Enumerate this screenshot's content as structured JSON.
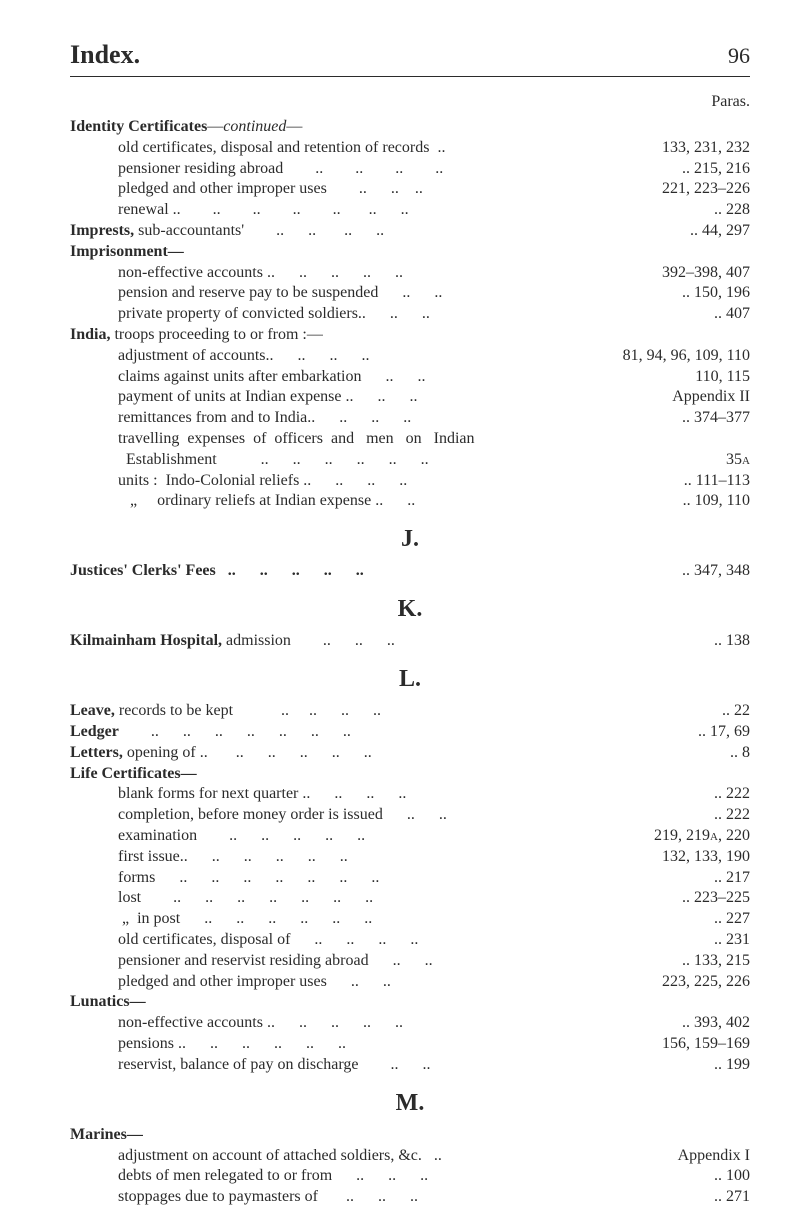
{
  "header": {
    "title": "Index.",
    "page": "96"
  },
  "paras_label": "Paras.",
  "entries": [
    {
      "html": "<span class='bold'>Identity Certificates</span>—<i>continued</i>—",
      "paras": "",
      "indent": 0
    },
    {
      "html": "old certificates, disposal and retention of records  ..",
      "paras": "133, 231, 232",
      "indent": 1
    },
    {
      "html": "pensioner residing abroad        ..        ..        ..        ..",
      "paras": ".. 215, 216",
      "indent": 1
    },
    {
      "html": "pledged and other improper uses        ..      ..    ..",
      "paras": "221, 223–226",
      "indent": 1
    },
    {
      "html": "renewal ..        ..        ..        ..        ..       ..      ..",
      "paras": "..        228",
      "indent": 1
    },
    {
      "html": "<span class='bold'>Imprests,</span> sub-accountants'        ..      ..       ..      ..",
      "paras": ".. 44, 297",
      "indent": 0
    },
    {
      "html": "<span class='bold'>Imprisonment—</span>",
      "paras": "",
      "indent": 0
    },
    {
      "html": "non-effective accounts ..      ..      ..      ..      ..",
      "paras": "392–398, 407",
      "indent": 1
    },
    {
      "html": "pension and reserve pay to be suspended      ..      ..",
      "paras": ".. 150, 196",
      "indent": 1
    },
    {
      "html": "private property of convicted soldiers..      ..      ..",
      "paras": "..        407",
      "indent": 1
    },
    {
      "html": "<span class='bold'>India,</span> troops proceeding to or from :—",
      "paras": "",
      "indent": 0
    },
    {
      "html": "adjustment of accounts..      ..      ..      ..",
      "paras": "81, 94, 96, 109, 110",
      "indent": 1
    },
    {
      "html": "claims against units after embarkation      ..      ..",
      "paras": "110, 115",
      "indent": 1
    },
    {
      "html": "payment of units at Indian expense ..      ..      ..",
      "paras": "Appendix II",
      "indent": 1
    },
    {
      "html": "remittances from and to India..      ..      ..      ..",
      "paras": ".. 374–377",
      "indent": 1
    },
    {
      "html": "travelling  expenses  of  officers  and   men   on   Indian",
      "paras": "",
      "indent": 1
    },
    {
      "html": "  Establishment           ..      ..      ..      ..      ..      ..",
      "paras": "35<span class='sc'>a</span>",
      "indent": 1
    },
    {
      "html": "units :  Indo-Colonial reliefs ..      ..      ..      ..",
      "paras": ".. 111–113",
      "indent": 1
    },
    {
      "html": "   „     ordinary reliefs at Indian expense ..      ..",
      "paras": ".. 109, 110",
      "indent": 1
    },
    {
      "section": "J."
    },
    {
      "html": "<span class='bold'>Justices' Clerks' Fees   ..      ..      ..      ..      ..</span>",
      "paras": ".. 347, 348",
      "indent": 0
    },
    {
      "section": "K."
    },
    {
      "html": "<span class='bold'>Kilmainham Hospital,</span> admission        ..      ..      ..",
      "paras": "..        138",
      "indent": 0
    },
    {
      "section": "L."
    },
    {
      "html": "<span class='bold'>Leave,</span> records to be kept            ..     ..      ..      ..",
      "paras": "..         22",
      "indent": 0
    },
    {
      "html": "<span class='bold'>Ledger</span>        ..      ..      ..      ..      ..      ..      ..",
      "paras": "..    17, 69",
      "indent": 0
    },
    {
      "html": "<span class='bold'>Letters,</span> opening of ..       ..      ..      ..      ..      ..",
      "paras": "..           8",
      "indent": 0
    },
    {
      "html": "<span class='bold'>Life Certificates—</span>",
      "paras": "",
      "indent": 0
    },
    {
      "html": "blank forms for next quarter ..      ..      ..      ..",
      "paras": "..        222",
      "indent": 1
    },
    {
      "html": "completion, before money order is issued      ..      ..",
      "paras": "..        222",
      "indent": 1
    },
    {
      "html": "examination        ..      ..      ..      ..      ..",
      "paras": "219, 219<span class='sc'>a</span>, 220",
      "indent": 1
    },
    {
      "html": "first issue..      ..      ..      ..      ..      ..",
      "paras": "132, 133, 190",
      "indent": 1
    },
    {
      "html": "forms      ..      ..      ..      ..      ..      ..      ..",
      "paras": "..        217",
      "indent": 1
    },
    {
      "html": "lost        ..      ..      ..      ..      ..      ..      ..",
      "paras": ".. 223–225",
      "indent": 1
    },
    {
      "html": " „  in post      ..      ..      ..      ..      ..      ..",
      "paras": "..        227",
      "indent": 1
    },
    {
      "html": "old certificates, disposal of      ..      ..      ..      ..",
      "paras": "..        231",
      "indent": 1
    },
    {
      "html": "pensioner and reservist residing abroad      ..      ..",
      "paras": ".. 133, 215",
      "indent": 1
    },
    {
      "html": "pledged and other improper uses      ..      ..",
      "paras": "223, 225, 226",
      "indent": 1
    },
    {
      "html": "<span class='bold'>Lunatics—</span>",
      "paras": "",
      "indent": 0
    },
    {
      "html": "non-effective accounts ..      ..      ..      ..      ..",
      "paras": ".. 393, 402",
      "indent": 1
    },
    {
      "html": "pensions ..      ..      ..      ..      ..      ..",
      "paras": "156, 159–169",
      "indent": 1
    },
    {
      "html": "reservist, balance of pay on discharge        ..      ..",
      "paras": "..        199",
      "indent": 1
    },
    {
      "section": "M."
    },
    {
      "html": "<span class='bold'>Marines—</span>",
      "paras": "",
      "indent": 0
    },
    {
      "html": "adjustment on account of attached soldiers, &c.   ..",
      "paras": "Appendix I",
      "indent": 1
    },
    {
      "html": "debts of men relegated to or from      ..      ..      ..",
      "paras": "..        100",
      "indent": 1
    },
    {
      "html": "stoppages due to paymasters of       ..      ..      ..",
      "paras": "..        271",
      "indent": 1
    }
  ]
}
